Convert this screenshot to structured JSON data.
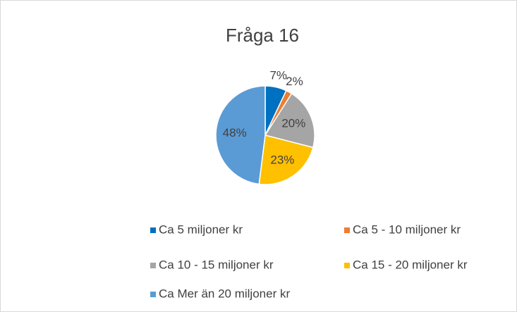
{
  "chart_data": {
    "type": "pie",
    "title": "Fråga 16",
    "categories": [
      "Ca 5 miljoner kr",
      "Ca 5 - 10 miljoner kr",
      "Ca 10 - 15 miljoner kr",
      "Ca 15 - 20 miljoner kr",
      "Ca Mer än 20 miljoner kr"
    ],
    "values": [
      7,
      2,
      20,
      23,
      48
    ],
    "value_labels": [
      "7%",
      "2%",
      "20%",
      "23%",
      "48%"
    ],
    "colors": [
      "#0070c0",
      "#ed7d31",
      "#a5a5a5",
      "#ffc000",
      "#5b9bd5"
    ],
    "legend": "bottom"
  }
}
